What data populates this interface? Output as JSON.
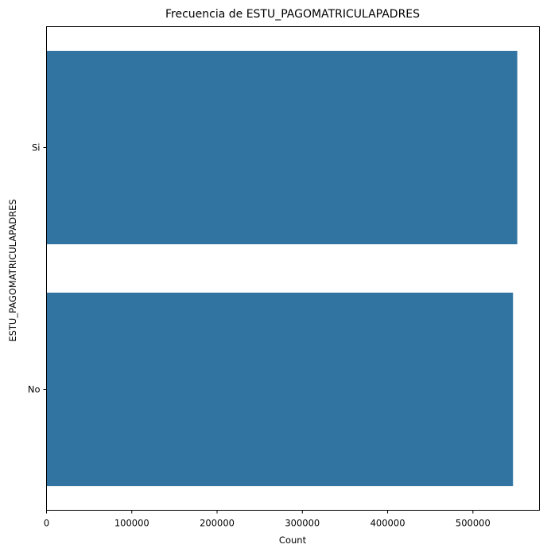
{
  "chart_data": {
    "type": "bar",
    "orientation": "horizontal",
    "title": "Frecuencia de ESTU_PAGOMATRICULAPADRES",
    "xlabel": "Count",
    "ylabel": "ESTU_PAGOMATRICULAPADRES",
    "categories": [
      "Si",
      "No"
    ],
    "values": [
      552000,
      547000
    ],
    "xlim": [
      0,
      578000
    ],
    "xticks": [
      0,
      100000,
      200000,
      300000,
      400000,
      500000
    ],
    "grid": false,
    "bar_color": "#3274a1"
  }
}
